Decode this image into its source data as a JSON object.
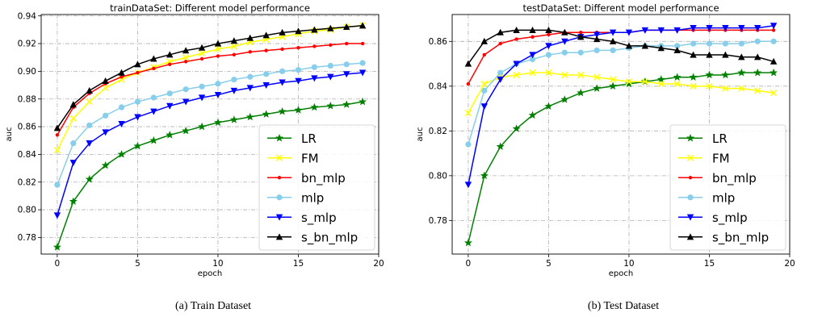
{
  "chart_data": [
    {
      "type": "line",
      "title": "trainDataSet: Different model performance",
      "xlabel": "epoch",
      "ylabel": "auc",
      "xlim": [
        -1,
        20
      ],
      "ylim": [
        0.768,
        0.941
      ],
      "xticks": [
        0,
        5,
        10,
        15,
        20
      ],
      "yticks": [
        0.78,
        0.8,
        0.82,
        0.84,
        0.86,
        0.88,
        0.9,
        0.92,
        0.94
      ],
      "ytick_labels": [
        "0.78",
        "0.80",
        "0.82",
        "0.84",
        "0.86",
        "0.88",
        "0.90",
        "0.92",
        "0.94"
      ],
      "grid": true,
      "legend_position": "bottom-right",
      "x": [
        0,
        1,
        2,
        3,
        4,
        5,
        6,
        7,
        8,
        9,
        10,
        11,
        12,
        13,
        14,
        15,
        16,
        17,
        18,
        19
      ],
      "series": [
        {
          "name": "LR",
          "color": "#008000",
          "marker": "star",
          "values": [
            0.773,
            0.806,
            0.822,
            0.832,
            0.84,
            0.846,
            0.85,
            0.854,
            0.857,
            0.86,
            0.863,
            0.865,
            0.867,
            0.869,
            0.871,
            0.872,
            0.874,
            0.875,
            0.876,
            0.878
          ]
        },
        {
          "name": "FM",
          "color": "#ffff00",
          "marker": "x",
          "values": [
            0.843,
            0.866,
            0.878,
            0.888,
            0.894,
            0.899,
            0.903,
            0.907,
            0.91,
            0.913,
            0.916,
            0.918,
            0.921,
            0.923,
            0.925,
            0.927,
            0.929,
            0.93,
            0.932,
            0.933
          ]
        },
        {
          "name": "bn_mlp",
          "color": "#ff0000",
          "marker": "dot",
          "values": [
            0.854,
            0.874,
            0.884,
            0.891,
            0.896,
            0.899,
            0.902,
            0.905,
            0.907,
            0.909,
            0.911,
            0.912,
            0.914,
            0.915,
            0.916,
            0.917,
            0.918,
            0.919,
            0.92,
            0.92
          ]
        },
        {
          "name": "mlp",
          "color": "#87ceeb",
          "marker": "circle",
          "values": [
            0.818,
            0.848,
            0.861,
            0.868,
            0.874,
            0.878,
            0.881,
            0.884,
            0.887,
            0.889,
            0.891,
            0.894,
            0.896,
            0.898,
            0.9,
            0.901,
            0.903,
            0.904,
            0.905,
            0.906
          ]
        },
        {
          "name": "s_mlp",
          "color": "#0000ff",
          "marker": "tri-down",
          "values": [
            0.796,
            0.834,
            0.848,
            0.856,
            0.862,
            0.867,
            0.871,
            0.875,
            0.878,
            0.881,
            0.883,
            0.886,
            0.888,
            0.89,
            0.892,
            0.893,
            0.895,
            0.896,
            0.898,
            0.899
          ]
        },
        {
          "name": "s_bn_mlp",
          "color": "#000000",
          "marker": "tri-up",
          "values": [
            0.859,
            0.876,
            0.886,
            0.893,
            0.899,
            0.905,
            0.909,
            0.912,
            0.915,
            0.917,
            0.92,
            0.922,
            0.924,
            0.926,
            0.928,
            0.929,
            0.93,
            0.931,
            0.932,
            0.933
          ]
        }
      ]
    },
    {
      "type": "line",
      "title": "testDataSet: Different model performance",
      "xlabel": "epoch",
      "ylabel": "auc",
      "xlim": [
        -1,
        20
      ],
      "ylim": [
        0.765,
        0.872
      ],
      "xticks": [
        0,
        5,
        10,
        15,
        20
      ],
      "yticks": [
        0.78,
        0.8,
        0.82,
        0.84,
        0.86
      ],
      "ytick_labels": [
        "0.78",
        "0.80",
        "0.82",
        "0.84",
        "0.86"
      ],
      "grid": true,
      "legend_position": "bottom-right",
      "x": [
        0,
        1,
        2,
        3,
        4,
        5,
        6,
        7,
        8,
        9,
        10,
        11,
        12,
        13,
        14,
        15,
        16,
        17,
        18,
        19
      ],
      "series": [
        {
          "name": "LR",
          "color": "#008000",
          "marker": "star",
          "values": [
            0.77,
            0.8,
            0.813,
            0.821,
            0.827,
            0.831,
            0.834,
            0.837,
            0.839,
            0.84,
            0.841,
            0.842,
            0.843,
            0.844,
            0.844,
            0.845,
            0.845,
            0.846,
            0.846,
            0.846
          ]
        },
        {
          "name": "FM",
          "color": "#ffff00",
          "marker": "x",
          "values": [
            0.828,
            0.841,
            0.844,
            0.845,
            0.846,
            0.846,
            0.845,
            0.845,
            0.844,
            0.843,
            0.842,
            0.842,
            0.841,
            0.841,
            0.84,
            0.84,
            0.839,
            0.839,
            0.838,
            0.837
          ]
        },
        {
          "name": "bn_mlp",
          "color": "#ff0000",
          "marker": "dot",
          "values": [
            0.841,
            0.854,
            0.859,
            0.861,
            0.862,
            0.863,
            0.864,
            0.864,
            0.864,
            0.864,
            0.864,
            0.865,
            0.865,
            0.865,
            0.865,
            0.865,
            0.865,
            0.865,
            0.865,
            0.865
          ]
        },
        {
          "name": "mlp",
          "color": "#87ceeb",
          "marker": "circle",
          "values": [
            0.814,
            0.838,
            0.846,
            0.85,
            0.852,
            0.854,
            0.855,
            0.855,
            0.856,
            0.856,
            0.857,
            0.858,
            0.858,
            0.858,
            0.859,
            0.859,
            0.859,
            0.859,
            0.86,
            0.86
          ]
        },
        {
          "name": "s_mlp",
          "color": "#0000ff",
          "marker": "tri-down",
          "values": [
            0.796,
            0.831,
            0.843,
            0.85,
            0.854,
            0.858,
            0.86,
            0.862,
            0.863,
            0.864,
            0.864,
            0.865,
            0.865,
            0.865,
            0.866,
            0.866,
            0.866,
            0.866,
            0.866,
            0.867
          ]
        },
        {
          "name": "s_bn_mlp",
          "color": "#000000",
          "marker": "tri-up",
          "values": [
            0.85,
            0.86,
            0.864,
            0.865,
            0.865,
            0.865,
            0.864,
            0.862,
            0.861,
            0.86,
            0.858,
            0.858,
            0.857,
            0.856,
            0.854,
            0.854,
            0.854,
            0.853,
            0.853,
            0.851
          ]
        }
      ]
    }
  ],
  "captions": [
    "(a)  Train Dataset",
    "(b)  Test Dataset"
  ]
}
